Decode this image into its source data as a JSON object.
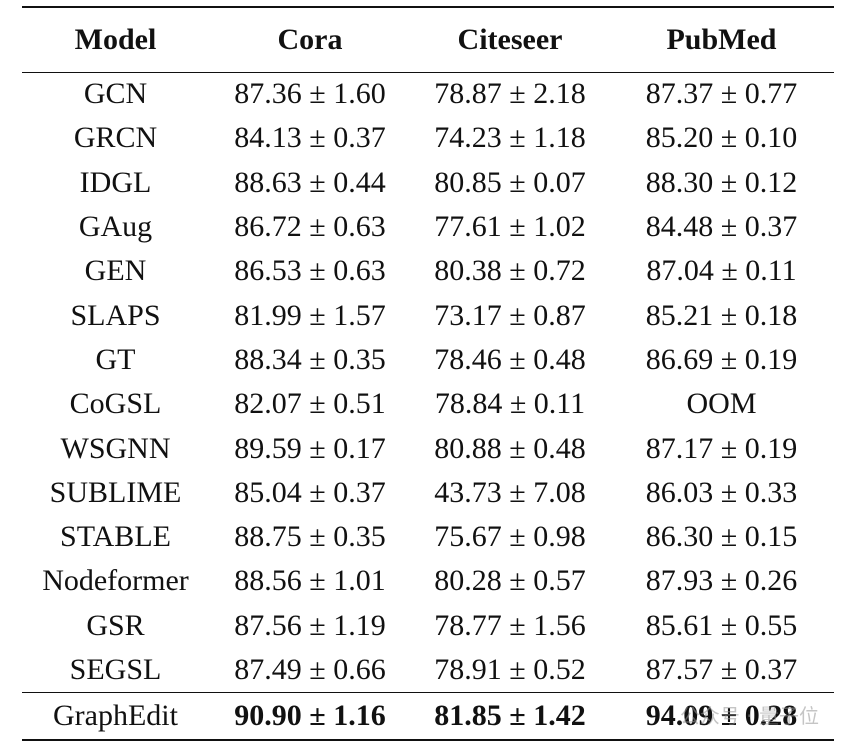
{
  "table": {
    "headers": [
      "Model",
      "Cora",
      "Citeseer",
      "PubMed"
    ],
    "rows": [
      [
        "GCN",
        "87.36 ± 1.60",
        "78.87 ± 2.18",
        "87.37 ± 0.77"
      ],
      [
        "GRCN",
        "84.13 ± 0.37",
        "74.23 ± 1.18",
        "85.20 ± 0.10"
      ],
      [
        "IDGL",
        "88.63 ± 0.44",
        "80.85 ± 0.07",
        "88.30 ± 0.12"
      ],
      [
        "GAug",
        "86.72 ± 0.63",
        "77.61 ± 1.02",
        "84.48 ± 0.37"
      ],
      [
        "GEN",
        "86.53 ± 0.63",
        "80.38 ± 0.72",
        "87.04 ± 0.11"
      ],
      [
        "SLAPS",
        "81.99 ± 1.57",
        "73.17 ± 0.87",
        "85.21 ± 0.18"
      ],
      [
        "GT",
        "88.34 ± 0.35",
        "78.46 ± 0.48",
        "86.69 ± 0.19"
      ],
      [
        "CoGSL",
        "82.07 ± 0.51",
        "78.84 ± 0.11",
        "OOM"
      ],
      [
        "WSGNN",
        "89.59 ± 0.17",
        "80.88 ± 0.48",
        "87.17 ± 0.19"
      ],
      [
        "SUBLIME",
        "85.04 ± 0.37",
        "43.73 ± 7.08",
        "86.03 ± 0.33"
      ],
      [
        "STABLE",
        "88.75 ± 0.35",
        "75.67 ± 0.98",
        "86.30 ± 0.15"
      ],
      [
        "Nodeformer",
        "88.56 ± 1.01",
        "80.28 ± 0.57",
        "87.93 ± 0.26"
      ],
      [
        "GSR",
        "87.56 ± 1.19",
        "78.77 ± 1.56",
        "85.61 ± 0.55"
      ],
      [
        "SEGSL",
        "87.49 ± 0.66",
        "78.91 ± 0.52",
        "87.57 ± 0.37"
      ]
    ],
    "final_row": [
      "GraphEdit",
      "90.90 ± 1.16",
      "81.85 ± 1.42",
      "94.09 ± 0.28"
    ]
  },
  "watermark": {
    "text": "公众号 · 量子位"
  }
}
